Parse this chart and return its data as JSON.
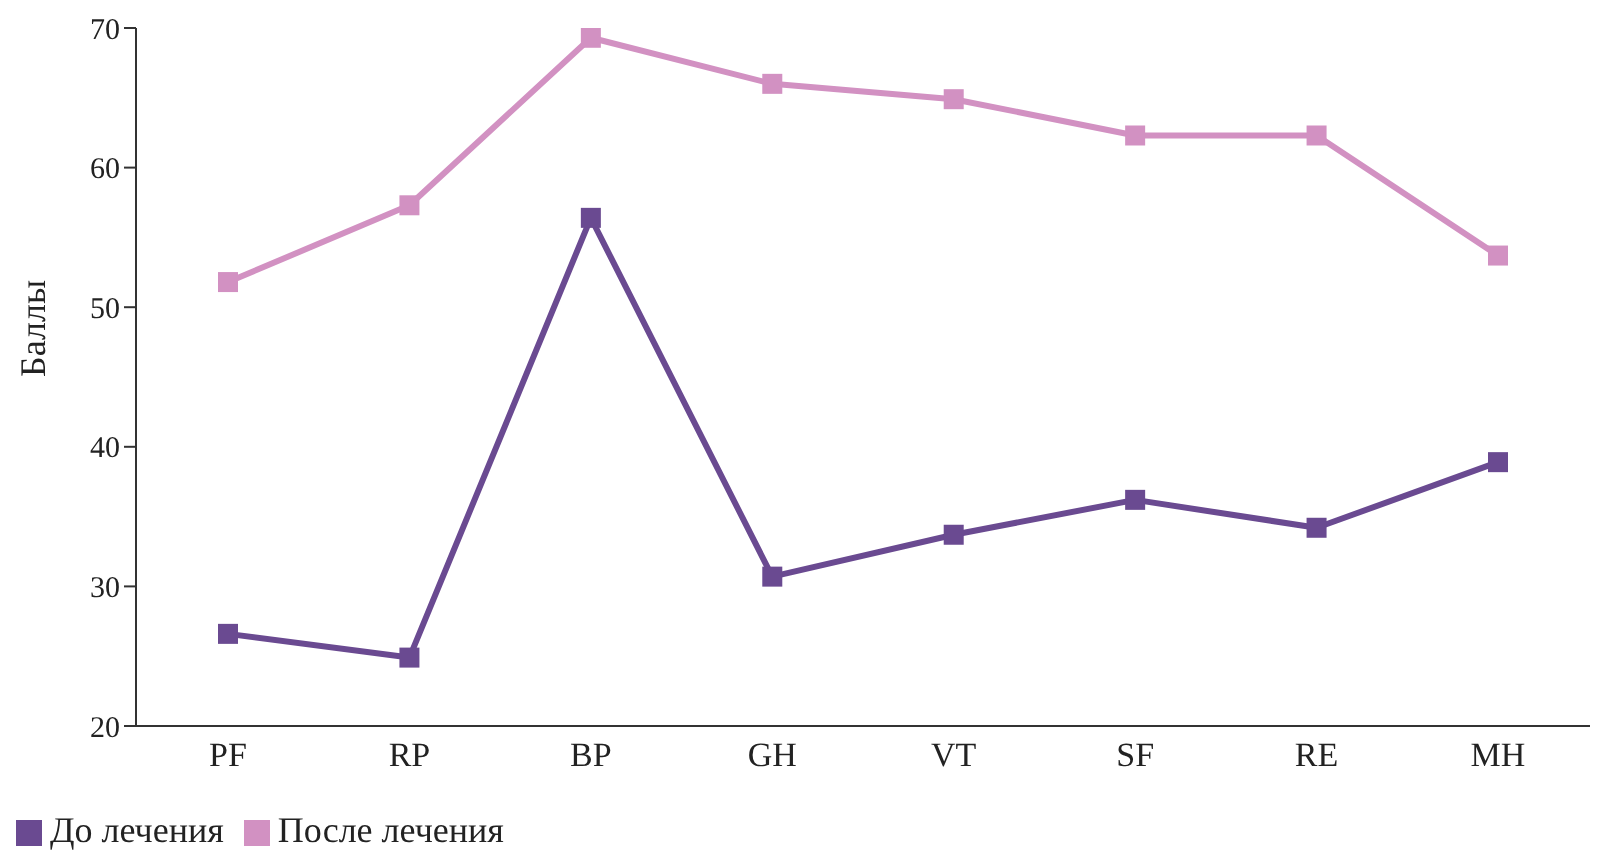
{
  "chart_data": {
    "type": "line",
    "ylabel": "Баллы",
    "categories": [
      "PF",
      "RP",
      "BP",
      "GH",
      "VT",
      "SF",
      "RE",
      "MH"
    ],
    "series": [
      {
        "name": "До лечения",
        "color": "#6a4a91",
        "values": [
          26.6,
          24.9,
          56.4,
          30.7,
          33.7,
          36.2,
          34.2,
          38.9
        ]
      },
      {
        "name": "После лечения",
        "color": "#d291c2",
        "values": [
          51.8,
          57.3,
          69.3,
          66.0,
          64.9,
          62.3,
          62.3,
          53.7
        ]
      }
    ],
    "ylim": [
      20,
      70
    ],
    "yticks": [
      20,
      30,
      40,
      50,
      60,
      70
    ],
    "grid": false,
    "legend": "bottom left",
    "marker": "square",
    "line_style": "solid"
  }
}
